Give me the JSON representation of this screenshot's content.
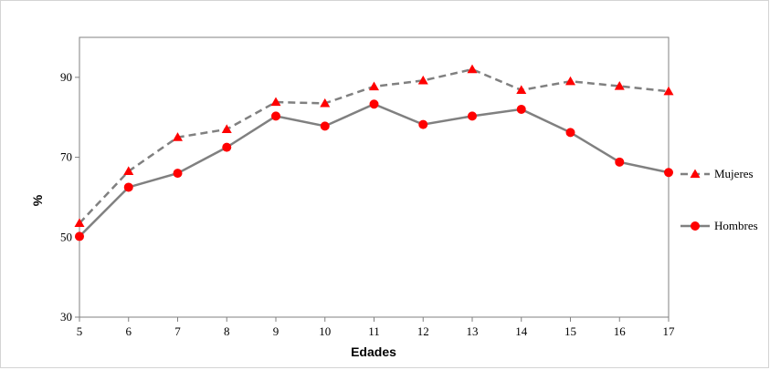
{
  "chart_data": {
    "type": "line",
    "title": "",
    "xlabel": "Edades",
    "ylabel": "%",
    "x": [
      5,
      6,
      7,
      8,
      9,
      10,
      11,
      12,
      13,
      14,
      15,
      16,
      17
    ],
    "ylim": [
      30,
      100
    ],
    "yticks": [
      30,
      50,
      70,
      90
    ],
    "grid": false,
    "legend_position": "right",
    "series": [
      {
        "name": "Mujeres",
        "values": [
          53.5,
          66.5,
          75,
          77,
          83.8,
          83.5,
          87.7,
          89.2,
          92,
          86.8,
          89,
          87.8,
          86.5
        ],
        "line_style": "dashed",
        "marker": "triangle",
        "line_color": "#808080",
        "marker_color": "#ff0000"
      },
      {
        "name": "Hombres",
        "values": [
          50.2,
          62.5,
          66,
          72.5,
          80.3,
          77.8,
          83.3,
          78.2,
          80.3,
          82,
          76.2,
          68.8,
          66.2
        ],
        "line_style": "solid",
        "marker": "circle",
        "line_color": "#808080",
        "marker_color": "#ff0000"
      }
    ]
  }
}
